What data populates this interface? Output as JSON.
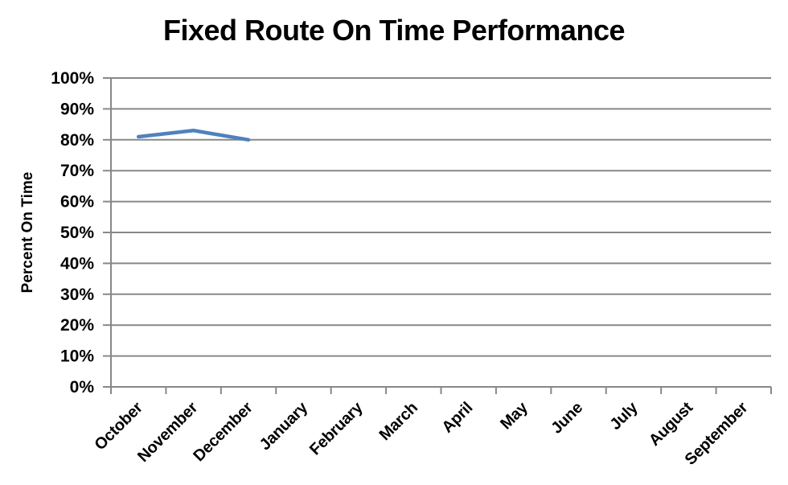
{
  "chart_data": {
    "type": "line",
    "title": "Fixed Route On Time Performance",
    "ylabel": "Percent On Time",
    "xlabel": "",
    "categories": [
      "October",
      "November",
      "December",
      "January",
      "February",
      "March",
      "April",
      "May",
      "June",
      "July",
      "August",
      "September"
    ],
    "series": [
      {
        "name": "Percent On Time",
        "color": "#4F81BD",
        "values": [
          81,
          83,
          80,
          null,
          null,
          null,
          null,
          null,
          null,
          null,
          null,
          null
        ]
      }
    ],
    "ylim": [
      0,
      100
    ],
    "ytick_step": 10,
    "ytick_labels": [
      "0%",
      "10%",
      "20%",
      "30%",
      "40%",
      "50%",
      "60%",
      "70%",
      "80%",
      "90%",
      "100%"
    ],
    "grid": "horizontal-major",
    "legend": "none",
    "axis_color": "#888888",
    "text_color": "#000000",
    "background": "#FFFFFF"
  }
}
